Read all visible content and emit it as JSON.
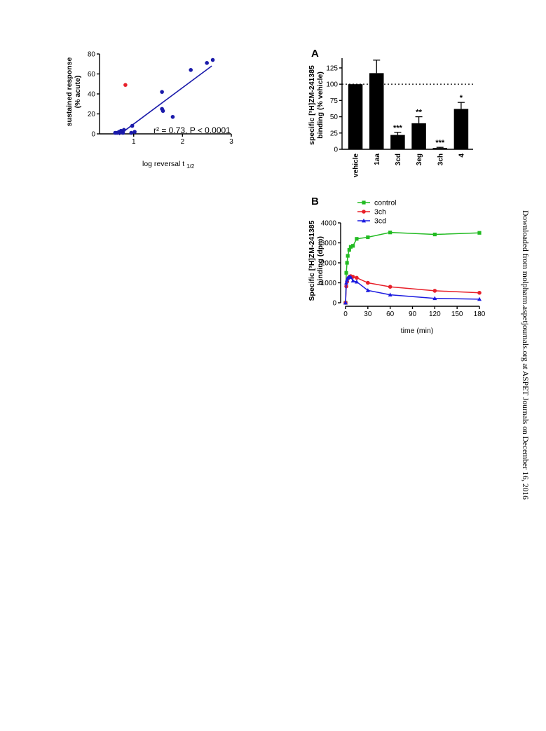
{
  "sidebar": {
    "download_text": "Downloaded from molpharm.aspetjournals.org at ASPET Journals on December 16, 2016"
  },
  "chart_data": [
    {
      "type": "scatter",
      "xlabel_main": "log reversal t",
      "xlabel_sub": "1/2",
      "ylabel_line1": "sustained response",
      "ylabel_line2": "(% acute)",
      "xlim": [
        0.3,
        3
      ],
      "ylim": [
        0,
        80
      ],
      "xticks": [
        1,
        2,
        3
      ],
      "yticks": [
        0,
        20,
        40,
        60,
        80
      ],
      "annotation": "r² = 0.73, P < 0.0001",
      "colors": {
        "points": "#1a1aaa",
        "outlier": "#e8202a",
        "fit": "#1a1aaa"
      },
      "points": [
        {
          "x": 0.62,
          "y": 1
        },
        {
          "x": 0.66,
          "y": 1
        },
        {
          "x": 0.7,
          "y": 2
        },
        {
          "x": 0.74,
          "y": 3
        },
        {
          "x": 0.78,
          "y": 1
        },
        {
          "x": 0.8,
          "y": 4
        },
        {
          "x": 0.95,
          "y": 1
        },
        {
          "x": 0.97,
          "y": 8
        },
        {
          "x": 1.02,
          "y": 2
        },
        {
          "x": 1.58,
          "y": 42
        },
        {
          "x": 1.58,
          "y": 25
        },
        {
          "x": 1.6,
          "y": 23
        },
        {
          "x": 1.8,
          "y": 17
        },
        {
          "x": 2.17,
          "y": 64
        },
        {
          "x": 2.5,
          "y": 71
        },
        {
          "x": 2.62,
          "y": 74
        }
      ],
      "outlier": {
        "x": 0.83,
        "y": 49
      },
      "fit_line": [
        {
          "x": 0.7,
          "y": -1
        },
        {
          "x": 2.6,
          "y": 68
        }
      ]
    },
    {
      "type": "bar",
      "panel_label": "A",
      "ylabel_line1": "specific [³H]ZM-241385",
      "ylabel_line2": "binding  (% vehicle)",
      "ylim": [
        0,
        140
      ],
      "yticks": [
        0,
        25,
        50,
        75,
        100,
        125
      ],
      "reference_line": 100,
      "bar_color": "#000000",
      "categories": [
        "vehicle",
        "1aa",
        "3cd",
        "3eg",
        "3ch",
        "4"
      ],
      "values": [
        100,
        117,
        22,
        40,
        2,
        62
      ],
      "errors": [
        0,
        20,
        4,
        10,
        1,
        10
      ],
      "significance": [
        "",
        "",
        "***",
        "**",
        "***",
        "*"
      ]
    },
    {
      "type": "line",
      "panel_label": "B",
      "xlabel": "time  (min)",
      "ylabel_line1": "Specific [³H]ZM-241385",
      "ylabel_line2": "binding (dpm)",
      "xlim": [
        0,
        180
      ],
      "ylim": [
        0,
        4000
      ],
      "xticks": [
        0,
        30,
        60,
        90,
        120,
        150,
        180
      ],
      "yticks": [
        0,
        1000,
        2000,
        3000,
        4000
      ],
      "x": [
        0,
        1,
        2,
        3,
        5,
        7,
        10,
        15,
        30,
        60,
        120,
        180
      ],
      "series": [
        {
          "name": "control",
          "color": "#22bb22",
          "marker": "square",
          "values": [
            0,
            1500,
            2000,
            2350,
            2650,
            2800,
            2850,
            3200,
            3280,
            3520,
            3420,
            3500
          ]
        },
        {
          "name": "3ch",
          "color": "#e8202a",
          "marker": "circle",
          "values": [
            0,
            820,
            1050,
            1200,
            1300,
            1330,
            1300,
            1250,
            1000,
            800,
            600,
            500
          ]
        },
        {
          "name": "3cd",
          "color": "#1a1ae0",
          "marker": "triangle",
          "values": [
            0,
            1000,
            1150,
            1250,
            1300,
            1280,
            1100,
            1050,
            620,
            400,
            220,
            180
          ]
        }
      ]
    }
  ]
}
